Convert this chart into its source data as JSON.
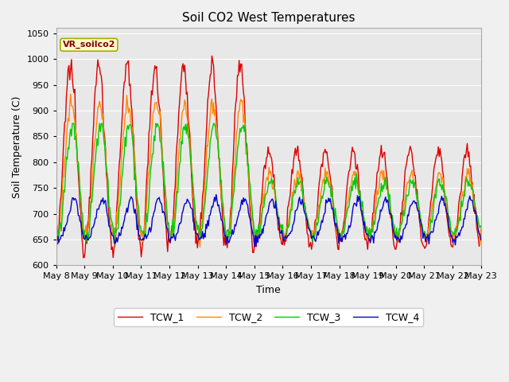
{
  "title": "Soil CO2 West Temperatures",
  "xlabel": "Time",
  "ylabel": "Soil Temperature (C)",
  "ylim": [
    600,
    1060
  ],
  "yticks": [
    600,
    650,
    700,
    750,
    800,
    850,
    900,
    950,
    1000,
    1050
  ],
  "x_labels": [
    "May 8",
    "May 9",
    "May 10",
    "May 11",
    "May 12",
    "May 13",
    "May 14",
    "May 15",
    "May 16",
    "May 17",
    "May 18",
    "May 19",
    "May 20",
    "May 21",
    "May 22",
    "May 23"
  ],
  "series_colors": [
    "#dd0000",
    "#ff8800",
    "#00cc00",
    "#0000cc"
  ],
  "series_names": [
    "TCW_1",
    "TCW_2",
    "TCW_3",
    "TCW_4"
  ],
  "annotation_text": "VR_soilco2",
  "annotation_bg": "#ffffcc",
  "annotation_fg": "#880000",
  "bg_color": "#e8e8e8",
  "fig_bg_color": "#f0f0f0",
  "grid_color": "#ffffff",
  "figsize": [
    6.4,
    4.8
  ],
  "dpi": 100
}
